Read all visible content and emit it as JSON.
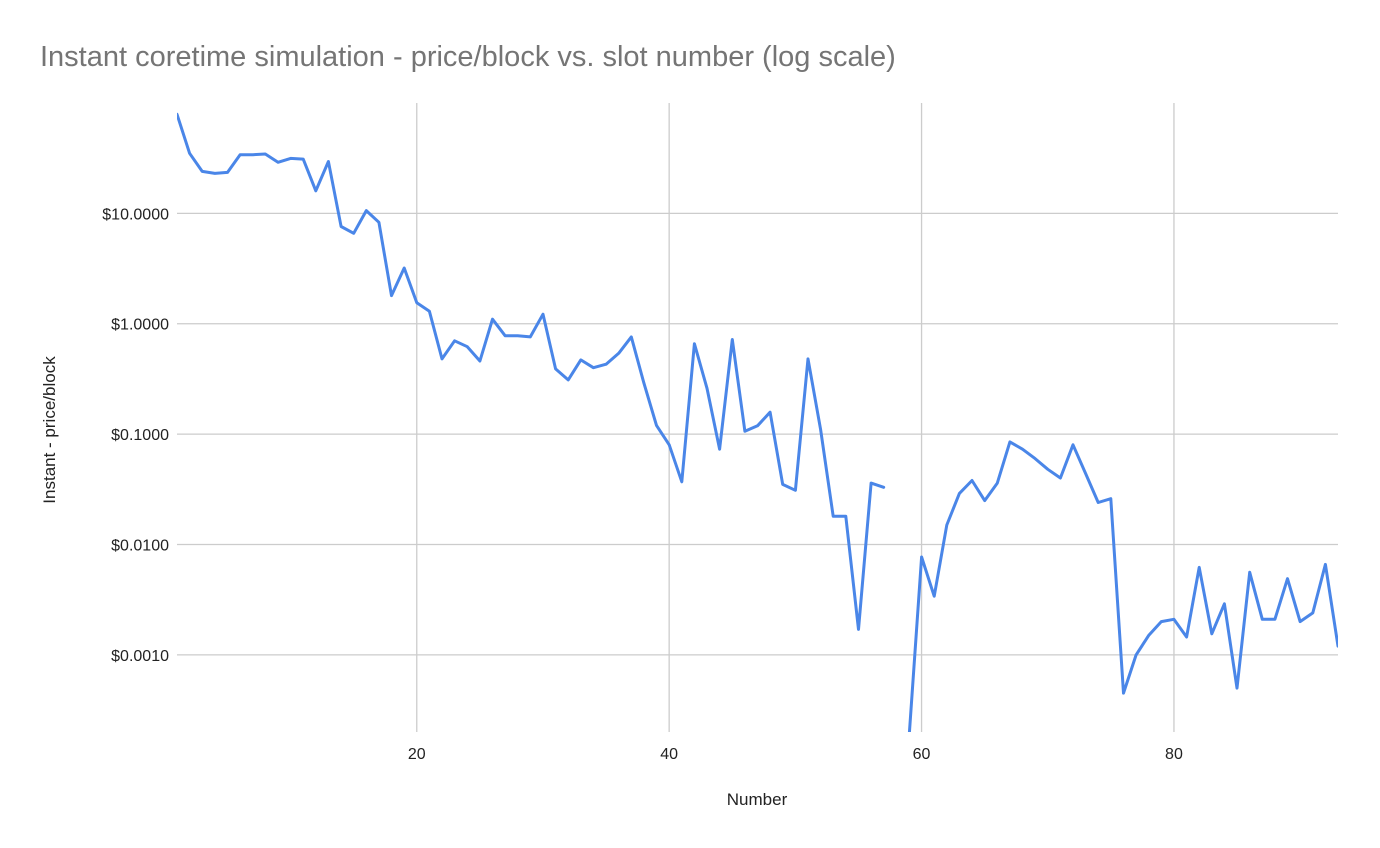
{
  "chart_data": {
    "type": "line",
    "title": "Instant coretime simulation - price/block vs. slot number (log scale)",
    "xlabel": "Number",
    "ylabel": "Instant  - price/block",
    "xlim": [
      1,
      93
    ],
    "ylim": [
      0.0002,
      100
    ],
    "yscale": "log",
    "grid": true,
    "legend": "none",
    "x_ticks": [
      20,
      40,
      60,
      80
    ],
    "y_ticks": [
      {
        "value": 10,
        "label": "$10.0000"
      },
      {
        "value": 1,
        "label": "$1.0000"
      },
      {
        "value": 0.1,
        "label": "$0.1000"
      },
      {
        "value": 0.01,
        "label": "$0.0100"
      },
      {
        "value": 0.001,
        "label": "$0.0010"
      }
    ],
    "series": [
      {
        "color": "#4a86e8",
        "segments": [
          {
            "x": [
              1,
              2,
              3,
              4,
              5,
              6,
              7,
              8,
              9,
              10,
              11,
              12,
              13,
              14,
              15,
              16,
              17,
              18,
              19,
              20,
              21,
              22,
              23,
              24,
              25,
              26,
              27,
              28,
              29,
              30,
              31,
              32,
              33,
              34,
              35,
              36,
              37,
              38,
              39,
              40,
              41,
              42,
              43,
              44,
              45,
              46,
              47,
              48,
              49,
              50,
              51,
              52,
              53,
              54,
              55,
              56,
              57
            ],
            "y": [
              79,
              35,
              24,
              23,
              23.5,
              34,
              34,
              34.5,
              29,
              31.5,
              31,
              16,
              29.5,
              7.6,
              6.6,
              10.6,
              8.3,
              1.8,
              3.2,
              1.55,
              1.3,
              0.48,
              0.7,
              0.62,
              0.46,
              1.1,
              0.78,
              0.78,
              0.76,
              1.22,
              0.39,
              0.31,
              0.47,
              0.4,
              0.43,
              0.54,
              0.76,
              0.29,
              0.12,
              0.08,
              0.037,
              0.66,
              0.26,
              0.073,
              0.72,
              0.106,
              0.119,
              0.158,
              0.035,
              0.031,
              0.48,
              0.11,
              0.018,
              0.018,
              0.0017,
              0.036,
              0.033
            ]
          },
          {
            "x": [
              59,
              60,
              61,
              62,
              63,
              64,
              65,
              66,
              67,
              68,
              69,
              70,
              71,
              72,
              73,
              74,
              75,
              76,
              77,
              78,
              79,
              80,
              81,
              82,
              83,
              84,
              85,
              86,
              87,
              88,
              89,
              90,
              91,
              92,
              93
            ],
            "y": [
              0.00017,
              0.0077,
              0.0034,
              0.015,
              0.029,
              0.038,
              0.025,
              0.036,
              0.085,
              0.073,
              0.06,
              0.048,
              0.04,
              0.08,
              0.044,
              0.024,
              0.026,
              0.00045,
              0.001,
              0.0015,
              0.002,
              0.0021,
              0.00145,
              0.0062,
              0.00155,
              0.0029,
              0.0005,
              0.0056,
              0.0021,
              0.0021,
              0.0049,
              0.002,
              0.0024,
              0.0066,
              0.0012
            ]
          }
        ]
      }
    ]
  }
}
